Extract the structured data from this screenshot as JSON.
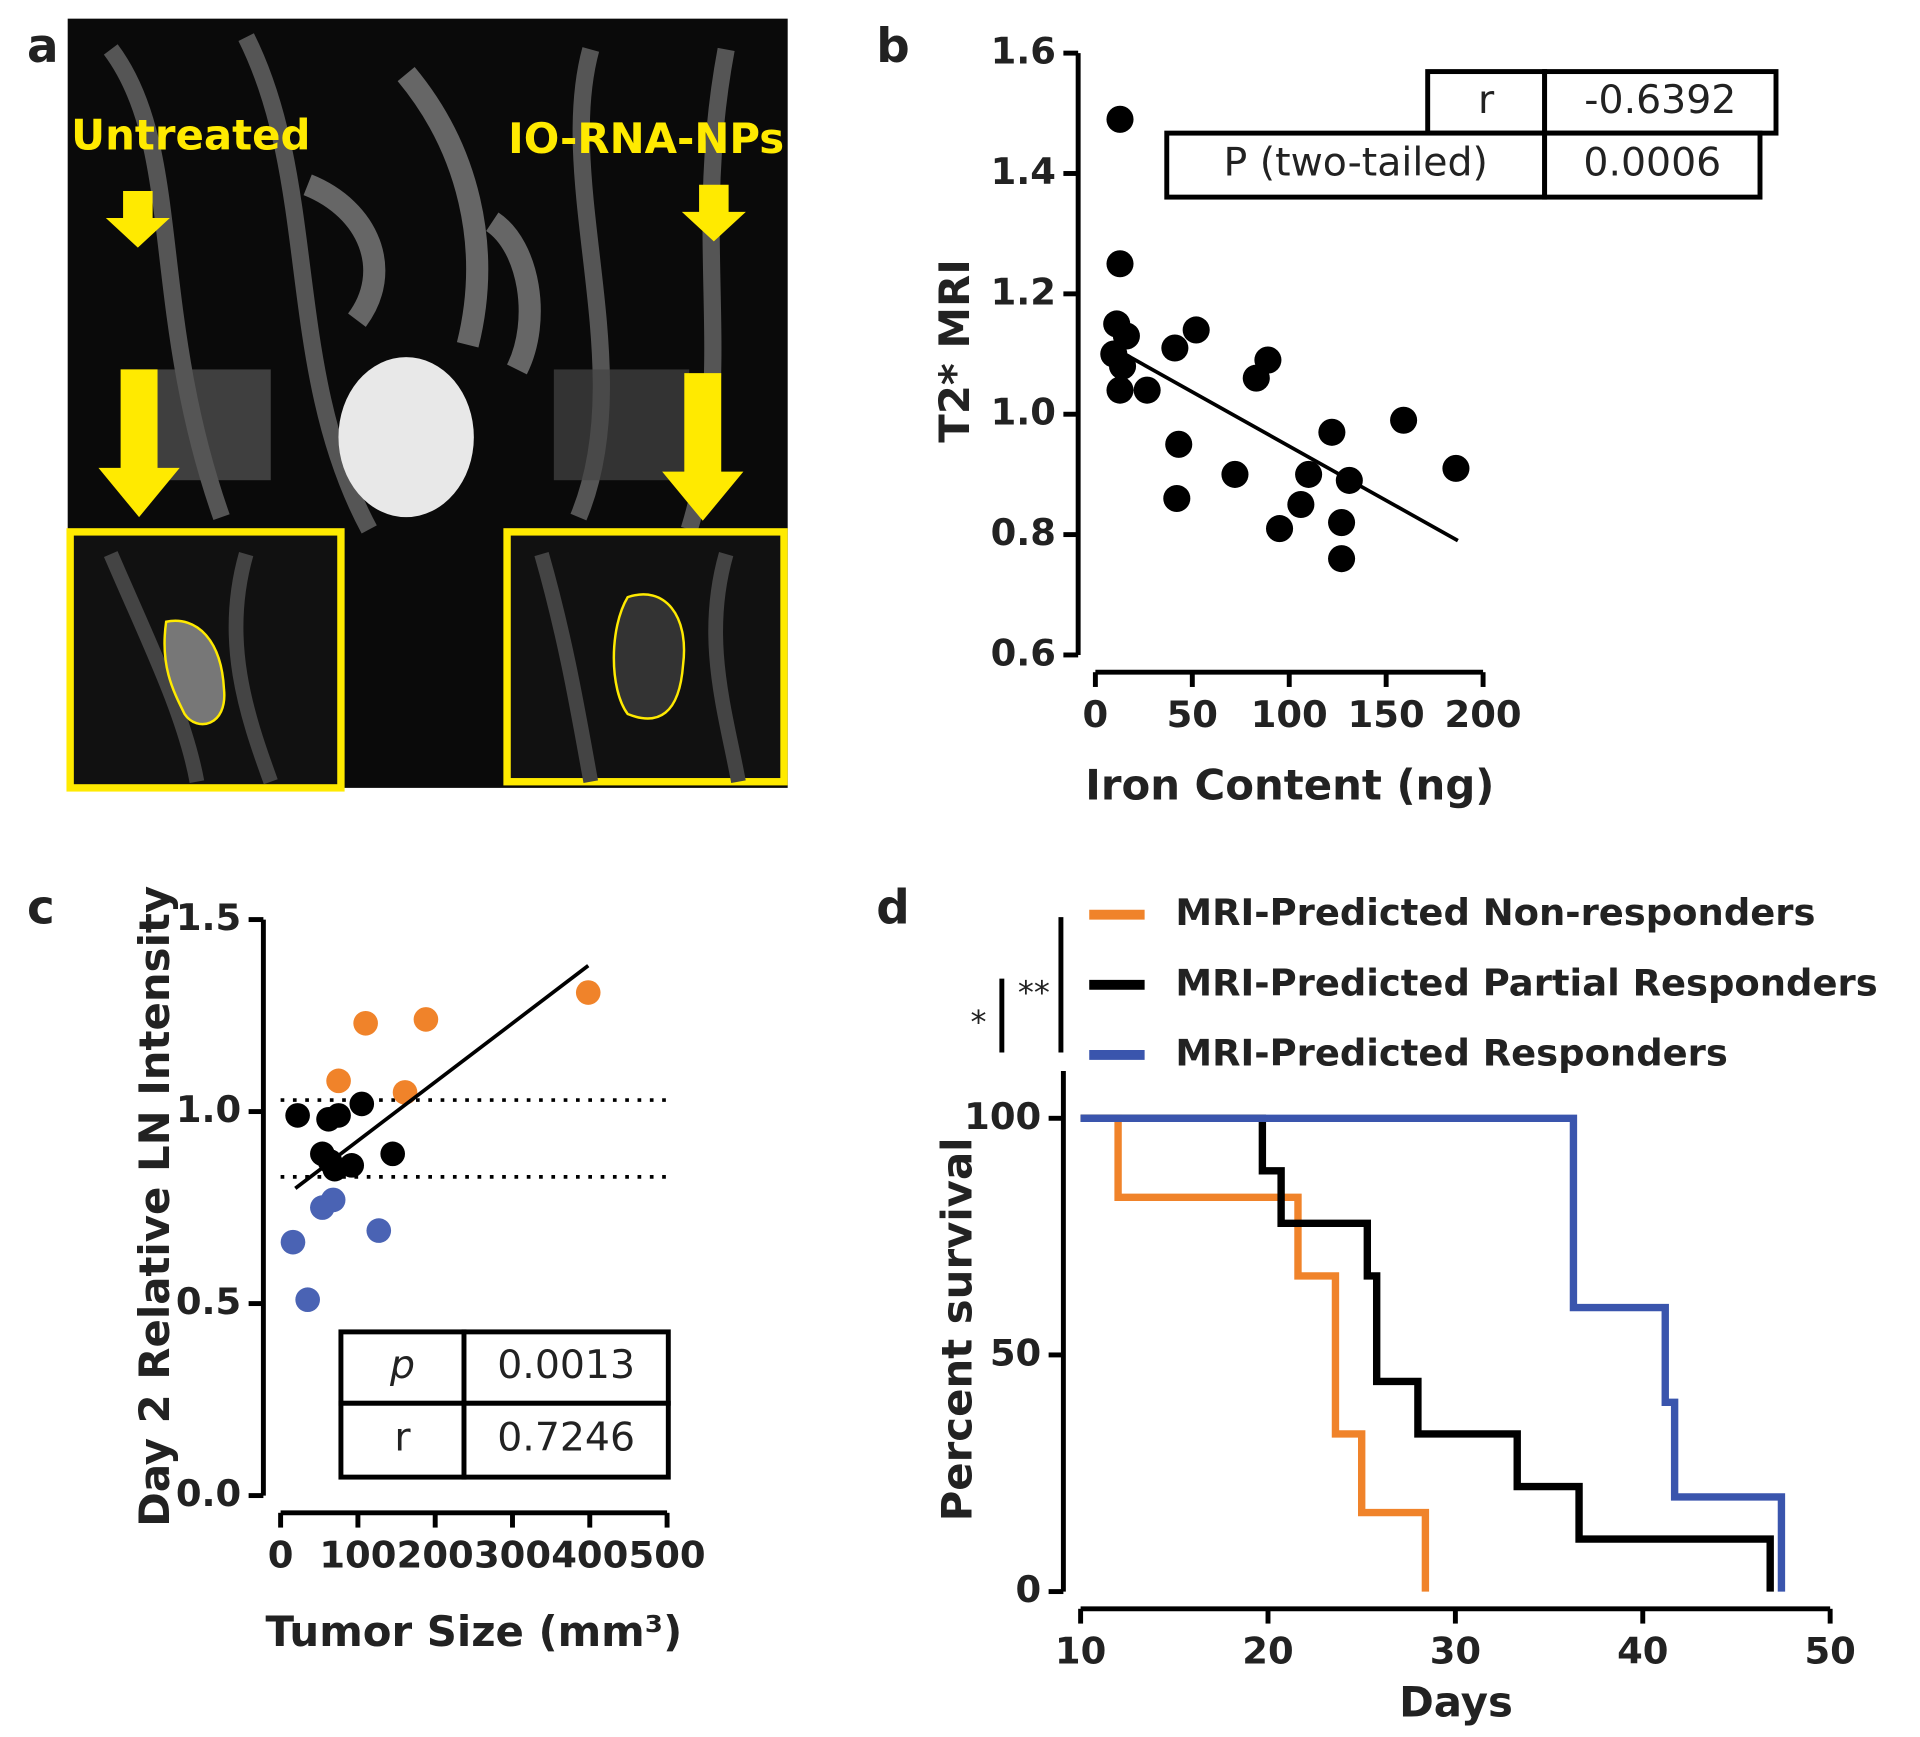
{
  "image_panel": {
    "label": "a",
    "annotations": [
      "Untreated",
      "IO-RNA-NPs"
    ]
  },
  "chart_data": [
    {
      "type": "scatter",
      "panel_label": "b",
      "x_label": "Iron Content (ng)",
      "y_label": "T2* MRI",
      "xlim": [
        0,
        200
      ],
      "xticks": [
        0,
        50,
        100,
        150,
        200
      ],
      "ylim": [
        0.6,
        1.6
      ],
      "yticks": [
        0.6,
        0.8,
        {
          "value": 1,
          "label": "1.0"
        },
        1.2,
        1.4,
        1.6
      ],
      "series": [
        {
          "color": "#000000",
          "x": [
            12.7,
            12.7,
            11,
            16,
            9.5,
            14,
            12.7,
            26.7,
            41,
            52,
            43,
            42,
            72,
            83,
            89,
            95,
            106,
            110,
            122,
            131,
            127,
            127,
            159,
            186
          ],
          "values": [
            1.49,
            1.25,
            1.15,
            1.13,
            1.1,
            1.08,
            1.04,
            1.04,
            1.11,
            1.14,
            0.95,
            0.86,
            0.9,
            1.06,
            1.09,
            0.81,
            0.85,
            0.9,
            0.97,
            0.89,
            0.82,
            0.76,
            0.99,
            0.91
          ]
        }
      ],
      "fit_line": {
        "x": [
          9.5,
          187
        ],
        "y": [
          1.11,
          0.79
        ]
      },
      "stats_table": [
        [
          "r",
          "-0.6392"
        ],
        [
          "P (two-tailed)",
          "0.0006"
        ]
      ]
    },
    {
      "type": "scatter",
      "panel_label": "c",
      "x_label": "Tumor Size (mm³)",
      "y_label": "Day 2 Relative LN Intensity",
      "xlim": [
        0,
        500
      ],
      "xticks": [
        0,
        100,
        200,
        300,
        400,
        500
      ],
      "ylim": [
        0,
        1.5
      ],
      "yticks": [
        {
          "value": 0,
          "label": "0.0"
        },
        0.5,
        {
          "value": 1,
          "label": "1.0"
        },
        1.5
      ],
      "series": [
        {
          "color": "#f0832a",
          "x": [
            75,
            110,
            188,
            161,
            398
          ],
          "values": [
            1.08,
            1.23,
            1.24,
            1.05,
            1.31
          ]
        },
        {
          "color": "#000000",
          "x": [
            22,
            62,
            75,
            105,
            54,
            64,
            70,
            92,
            145
          ],
          "values": [
            0.99,
            0.98,
            0.99,
            1.02,
            0.89,
            0.87,
            0.85,
            0.86,
            0.89
          ]
        },
        {
          "color": "#4a63b4",
          "x": [
            16,
            35,
            54,
            68,
            127
          ],
          "values": [
            0.66,
            0.51,
            0.75,
            0.77,
            0.69
          ]
        }
      ],
      "fit_line": {
        "x": [
          19,
          398
        ],
        "y": [
          0.8,
          1.38
        ]
      },
      "reference_lines": [
        1.03,
        0.83
      ],
      "stats_table": [
        [
          "p",
          "0.0013"
        ],
        [
          "r",
          "0.7246"
        ]
      ]
    },
    {
      "type": "survival",
      "panel_label": "d",
      "x_label": "Days",
      "y_label": "Percent survival",
      "xlim": [
        10,
        50
      ],
      "xticks": [
        10,
        20,
        30,
        40,
        50
      ],
      "ylim": [
        0,
        110
      ],
      "yticks": [
        0,
        50,
        100
      ],
      "legend": "top",
      "significance_labels": [
        "*",
        "**"
      ],
      "series": [
        {
          "name": "MRI-Predicted Non-responders",
          "color": "#f0832a",
          "x": [
            10,
            12,
            21.6,
            23.6,
            25,
            28.4
          ],
          "values": [
            100,
            83.3,
            66.7,
            33.3,
            16.7,
            0
          ]
        },
        {
          "name": "MRI-Predicted Partial Responders",
          "color": "#000000",
          "x": [
            10,
            19.7,
            20.7,
            25.3,
            25.8,
            28,
            33.3,
            36.6,
            46.8
          ],
          "values": [
            100,
            88.9,
            77.8,
            66.7,
            44.4,
            33.3,
            22.2,
            11.1,
            0
          ]
        },
        {
          "name": "MRI-Predicted Responders",
          "color": "#3a55ad",
          "x": [
            10,
            36.3,
            41.2,
            41.7,
            47.4
          ],
          "values": [
            100,
            60,
            40,
            20,
            0
          ]
        }
      ]
    }
  ]
}
